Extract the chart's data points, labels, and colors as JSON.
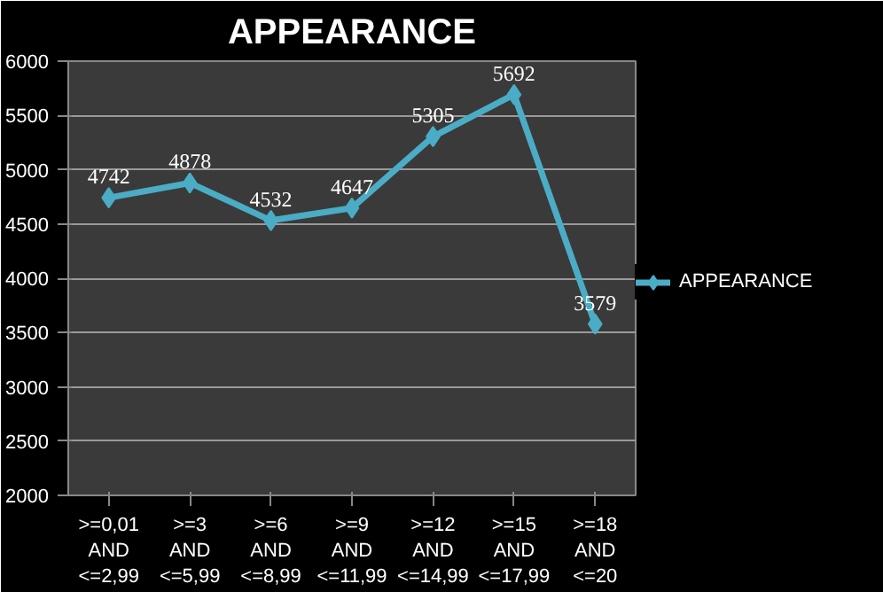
{
  "chart_data": {
    "type": "line",
    "title": "APPEARANCE",
    "categories": [
      ">=0,01 AND <=2,99",
      ">=3 AND <=5,99",
      ">=6 AND <=8,99",
      ">=9 AND <=11,99",
      ">=12 AND <=14,99",
      ">=15 AND <=17,99",
      ">=18 AND <=20"
    ],
    "series": [
      {
        "name": "APPEARANCE",
        "color": "#4bacc6",
        "values": [
          4742,
          4878,
          4532,
          4647,
          5305,
          5692,
          3579
        ]
      }
    ],
    "ylim": [
      2000,
      6000
    ],
    "yticks": [
      2000,
      2500,
      3000,
      3500,
      4000,
      4500,
      5000,
      5500,
      6000
    ],
    "grid": "y",
    "legend": "right",
    "marker": "diamond",
    "line_style": "solid",
    "data_labels": true
  }
}
